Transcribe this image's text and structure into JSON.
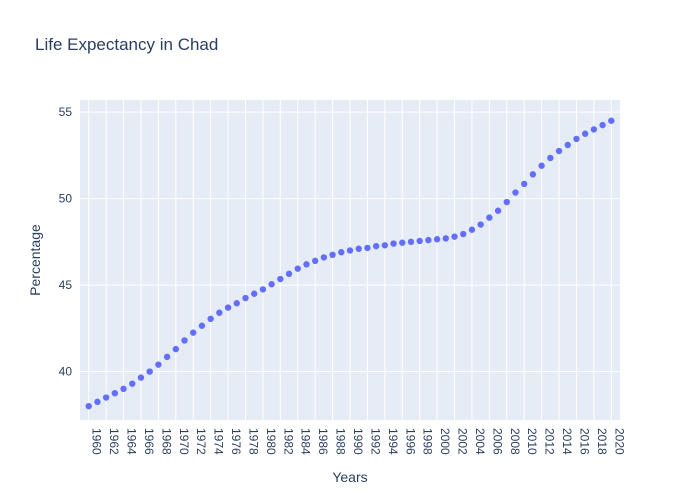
{
  "chart_data": {
    "type": "scatter",
    "title": "Life Expectancy in Chad",
    "xlabel": "Years",
    "ylabel": "Percentage",
    "x": [
      1960,
      1961,
      1962,
      1963,
      1964,
      1965,
      1966,
      1967,
      1968,
      1969,
      1970,
      1971,
      1972,
      1973,
      1974,
      1975,
      1976,
      1977,
      1978,
      1979,
      1980,
      1981,
      1982,
      1983,
      1984,
      1985,
      1986,
      1987,
      1988,
      1989,
      1990,
      1991,
      1992,
      1993,
      1994,
      1995,
      1996,
      1997,
      1998,
      1999,
      2000,
      2001,
      2002,
      2003,
      2004,
      2005,
      2006,
      2007,
      2008,
      2009,
      2010,
      2011,
      2012,
      2013,
      2014,
      2015,
      2016,
      2017,
      2018,
      2019,
      2020
    ],
    "y": [
      38.0,
      38.25,
      38.5,
      38.75,
      39.0,
      39.3,
      39.65,
      40.0,
      40.4,
      40.85,
      41.3,
      41.8,
      42.25,
      42.65,
      43.05,
      43.4,
      43.7,
      43.95,
      44.25,
      44.5,
      44.75,
      45.05,
      45.35,
      45.65,
      45.95,
      46.2,
      46.4,
      46.6,
      46.75,
      46.9,
      47.0,
      47.1,
      47.15,
      47.25,
      47.3,
      47.4,
      47.45,
      47.5,
      47.55,
      47.6,
      47.65,
      47.7,
      47.8,
      47.95,
      48.2,
      48.5,
      48.9,
      49.3,
      49.8,
      50.35,
      50.85,
      51.4,
      51.9,
      52.35,
      52.75,
      53.1,
      53.45,
      53.75,
      54.0,
      54.25,
      54.5
    ],
    "xlim": [
      1959,
      2021
    ],
    "ylim": [
      37.2,
      55.7
    ],
    "x_ticks": [
      "1960",
      "1962",
      "1964",
      "1966",
      "1968",
      "1970",
      "1972",
      "1974",
      "1976",
      "1978",
      "1980",
      "1982",
      "1984",
      "1986",
      "1988",
      "1990",
      "1992",
      "1994",
      "1996",
      "1998",
      "2000",
      "2002",
      "2004",
      "2006",
      "2008",
      "2010",
      "2012",
      "2014",
      "2016",
      "2018",
      "2020"
    ],
    "y_ticks": [
      "40",
      "45",
      "50",
      "55"
    ],
    "grid": true,
    "colors": {
      "marker": "#636efa",
      "plot_bg": "#e5ecf6",
      "grid": "#ffffff",
      "text": "#2a3f5f"
    }
  }
}
